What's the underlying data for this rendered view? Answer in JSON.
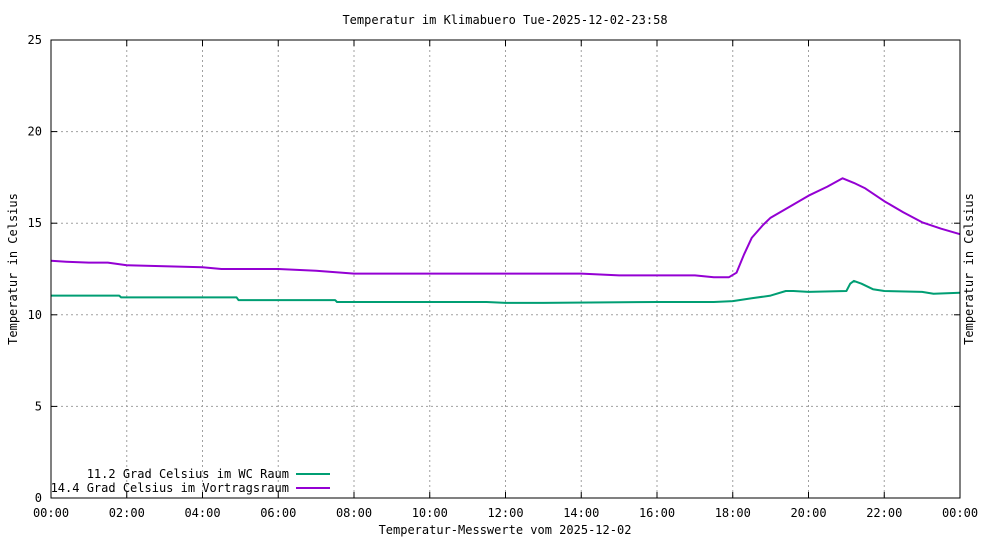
{
  "chart_data": {
    "type": "line",
    "title": "Temperatur im Klimabuero Tue-2025-12-02-23:58",
    "xlabel": "Temperatur-Messwerte vom 2025-12-02",
    "ylabel": "Temperatur in Celsius",
    "y2label": "Temperatur in Celsius",
    "xlim": [
      0,
      24
    ],
    "ylim": [
      0,
      25
    ],
    "x_ticks": [
      0,
      2,
      4,
      6,
      8,
      10,
      12,
      14,
      16,
      18,
      20,
      22,
      24
    ],
    "x_tick_labels": [
      "00:00",
      "02:00",
      "04:00",
      "06:00",
      "08:00",
      "10:00",
      "12:00",
      "14:00",
      "16:00",
      "18:00",
      "20:00",
      "22:00",
      "00:00"
    ],
    "y_ticks": [
      0,
      5,
      10,
      15,
      20,
      25
    ],
    "y_tick_labels": [
      "0",
      "5",
      "10",
      "15",
      "20",
      "25"
    ],
    "grid": true,
    "legend_position": "bottom-left",
    "series": [
      {
        "name": "11.2 Grad Celsius im WC Raum",
        "color": "#009e73",
        "x": [
          0,
          1.8,
          1.85,
          4.9,
          4.95,
          7.5,
          7.55,
          11.5,
          12,
          13,
          16,
          17.5,
          18,
          18.5,
          19,
          19.4,
          19.6,
          20,
          21,
          21.1,
          21.2,
          21.4,
          21.7,
          22,
          23,
          23.3,
          24
        ],
        "y": [
          11.05,
          11.05,
          10.95,
          10.95,
          10.8,
          10.8,
          10.7,
          10.7,
          10.65,
          10.65,
          10.7,
          10.7,
          10.75,
          10.9,
          11.05,
          11.3,
          11.3,
          11.25,
          11.3,
          11.7,
          11.85,
          11.7,
          11.4,
          11.3,
          11.25,
          11.15,
          11.2
        ]
      },
      {
        "name": "14.4 Grad Celsius im Vortragsraum",
        "color": "#9400d3",
        "x": [
          0,
          0.4,
          1,
          1.5,
          2,
          3,
          4,
          4.5,
          5,
          6,
          6.5,
          7,
          7.7,
          8,
          10,
          12,
          14,
          14.5,
          15,
          16,
          17,
          17.5,
          17.9,
          18.1,
          18.3,
          18.5,
          18.8,
          19,
          19.5,
          20,
          20.5,
          20.9,
          21.2,
          21.5,
          22,
          22.5,
          23,
          23.5,
          24
        ],
        "y": [
          12.95,
          12.9,
          12.85,
          12.85,
          12.7,
          12.65,
          12.6,
          12.5,
          12.5,
          12.5,
          12.45,
          12.4,
          12.3,
          12.25,
          12.25,
          12.25,
          12.25,
          12.2,
          12.15,
          12.15,
          12.15,
          12.05,
          12.05,
          12.3,
          13.3,
          14.2,
          14.9,
          15.3,
          15.9,
          16.5,
          17,
          17.45,
          17.2,
          16.9,
          16.2,
          15.6,
          15.05,
          14.7,
          14.4
        ]
      }
    ]
  }
}
